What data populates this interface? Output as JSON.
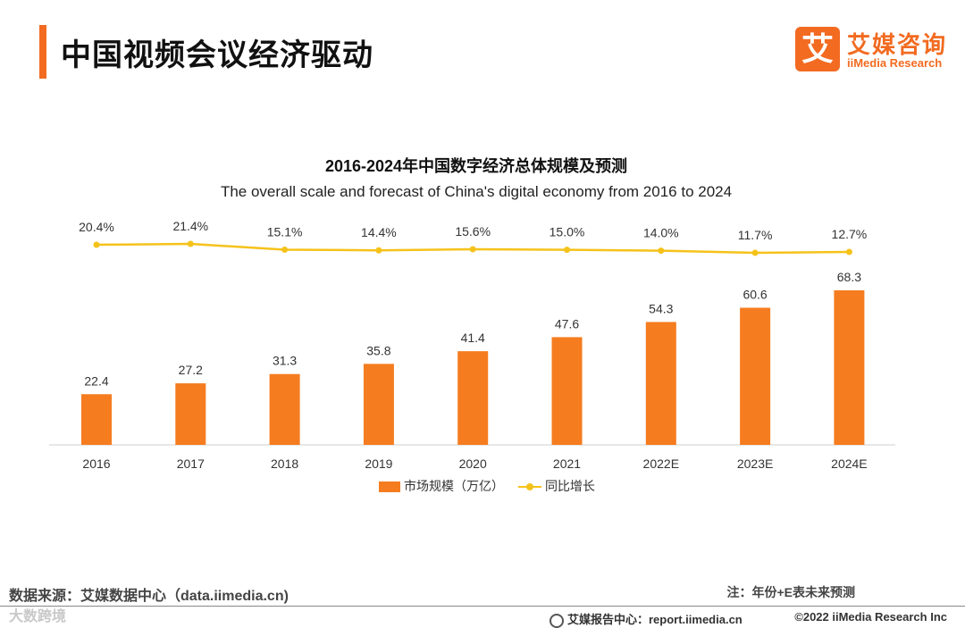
{
  "header": {
    "title": "中国视频会议经济驱动",
    "logo_mark": "艾",
    "logo_cn": "艾媒咨询",
    "logo_en": "iiMedia Research"
  },
  "chart_data": {
    "type": "bar",
    "title": "2016-2024年中国数字经济总体规模及预测",
    "subtitle": "The overall scale and forecast of China's digital economy from 2016 to 2024",
    "categories": [
      "2016",
      "2017",
      "2018",
      "2019",
      "2020",
      "2021",
      "2022E",
      "2023E",
      "2024E"
    ],
    "series": [
      {
        "name": "市场规模（万亿）",
        "type": "bar",
        "values": [
          22.4,
          27.2,
          31.3,
          35.8,
          41.4,
          47.6,
          54.3,
          60.6,
          68.3
        ],
        "labels": [
          "22.4",
          "27.2",
          "31.3",
          "35.8",
          "41.4",
          "47.6",
          "54.3",
          "60.6",
          "68.3"
        ],
        "color": "#f57c1f"
      },
      {
        "name": "同比增长",
        "type": "line",
        "values": [
          20.4,
          21.4,
          15.1,
          14.4,
          15.6,
          15.0,
          14.0,
          11.7,
          12.7
        ],
        "labels": [
          "20.4%",
          "21.4%",
          "15.1%",
          "14.4%",
          "15.6%",
          "15.0%",
          "14.0%",
          "11.7%",
          "12.7%"
        ],
        "color": "#f5c21a"
      }
    ],
    "legend": "bottom"
  },
  "footer": {
    "source": "数据来源：艾媒数据中心（data.iimedia.cn)",
    "note": "注：年份+E表未来预测",
    "watermark": "大数跨境",
    "report": "艾媒报告中心：report.iimedia.cn",
    "copyright": "©2022  iiMedia Research  Inc"
  },
  "colors": {
    "accent": "#f26b21",
    "bar": "#f57c1f",
    "line": "#f5c21a"
  }
}
